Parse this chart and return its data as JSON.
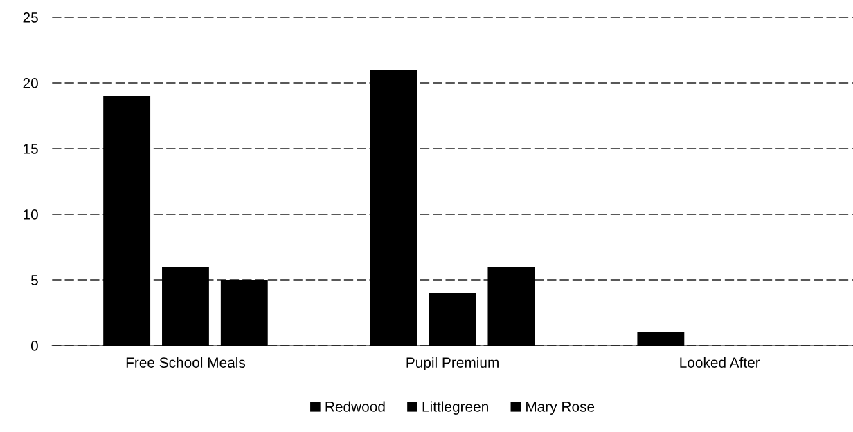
{
  "chart_data": {
    "type": "bar",
    "categories": [
      "Free School Meals",
      "Pupil Premium",
      "Looked After"
    ],
    "series": [
      {
        "name": "Redwood",
        "color": "#000000",
        "values": [
          19,
          21,
          1
        ]
      },
      {
        "name": "Littlegreen",
        "color": "#000000",
        "values": [
          6,
          4,
          0
        ]
      },
      {
        "name": "Mary Rose",
        "color": "#000000",
        "values": [
          5,
          6,
          0
        ]
      }
    ],
    "ylim": [
      0,
      25
    ],
    "yticks": [
      0,
      5,
      10,
      15,
      20,
      25
    ],
    "grid": "y",
    "legend": "bottom"
  }
}
